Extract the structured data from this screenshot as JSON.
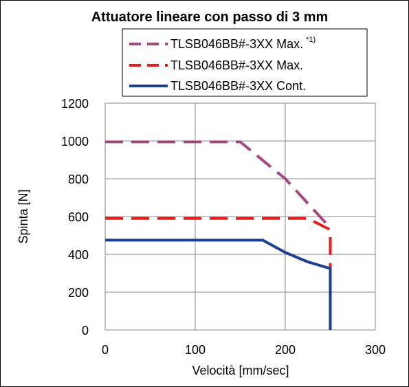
{
  "chart_data": {
    "type": "line",
    "title": "Attuatore lineare con passo di 3 mm",
    "xlabel": "Velocità [mm/sec]",
    "ylabel": "Spinta [N]",
    "xlim": [
      0,
      300
    ],
    "ylim": [
      0,
      1200
    ],
    "xticks": [
      0,
      100,
      200,
      300
    ],
    "yticks": [
      0,
      200,
      400,
      600,
      800,
      1000,
      1200
    ],
    "grid": true,
    "legend_position": "top",
    "series": [
      {
        "name": "TLSB046BB#-3XX Max.",
        "name_sup": "*1)",
        "color": "#a4477e",
        "dash": "dashed",
        "x": [
          0,
          150,
          200,
          250
        ],
        "y": [
          995,
          995,
          800,
          540
        ]
      },
      {
        "name": "TLSB046BB#-3XX Max.",
        "name_sup": "",
        "color": "#e1201e",
        "dash": "dashed",
        "x": [
          0,
          225,
          250,
          250
        ],
        "y": [
          590,
          590,
          530,
          0
        ]
      },
      {
        "name": "TLSB046BB#-3XX Cont.",
        "name_sup": "",
        "color": "#1b3f95",
        "dash": "solid",
        "x": [
          0,
          175,
          200,
          225,
          250,
          250
        ],
        "y": [
          475,
          475,
          410,
          360,
          325,
          0
        ]
      }
    ]
  }
}
